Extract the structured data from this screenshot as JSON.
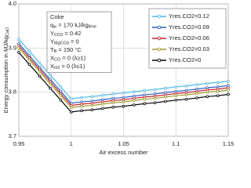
{
  "chart_data": {
    "type": "line",
    "x_label": "Air excess number",
    "y_label": [
      "Energy consumption in MJ/kg",
      "CaO"
    ],
    "annotation": [
      [
        "Coke"
      ],
      [
        "q",
        "w",
        " = 170 kJ/kg",
        "lime"
      ],
      [
        "Y",
        "CO2",
        " = 0.42"
      ],
      [
        "Y",
        "MgCO3",
        " = 0"
      ],
      [
        "T",
        "B",
        " = 150 °C"
      ],
      [
        "X",
        "CO",
        " = 0 (λ≥1)"
      ],
      [
        "X",
        "O2",
        " = 0 (λ≤1)"
      ]
    ],
    "x": [
      0.95,
      0.96,
      0.97,
      0.98,
      0.99,
      1.0,
      1.01,
      1.02,
      1.03,
      1.04,
      1.05,
      1.06,
      1.07,
      1.08,
      1.09,
      1.1,
      1.11,
      1.12,
      1.13,
      1.14,
      1.15
    ],
    "series": [
      {
        "name": "Yres.CO2=0.12",
        "color": "#4fb7e3",
        "values": [
          3.92,
          3.893,
          3.866,
          3.839,
          3.812,
          3.785,
          3.788,
          3.79,
          3.793,
          3.796,
          3.798,
          3.801,
          3.804,
          3.806,
          3.809,
          3.812,
          3.814,
          3.817,
          3.82,
          3.822,
          3.825
        ]
      },
      {
        "name": "Yres.CO2=0.09",
        "color": "#2a5fbf",
        "values": [
          3.91,
          3.883,
          3.856,
          3.829,
          3.802,
          3.775,
          3.778,
          3.78,
          3.783,
          3.786,
          3.788,
          3.791,
          3.794,
          3.796,
          3.799,
          3.802,
          3.804,
          3.807,
          3.81,
          3.812,
          3.815
        ]
      },
      {
        "name": "Yres.CO2=0.06",
        "color": "#c0262d",
        "values": [
          3.905,
          3.878,
          3.851,
          3.824,
          3.797,
          3.77,
          3.773,
          3.775,
          3.778,
          3.781,
          3.783,
          3.786,
          3.789,
          3.791,
          3.794,
          3.797,
          3.799,
          3.802,
          3.805,
          3.807,
          3.81
        ]
      },
      {
        "name": "Yres.CO2=0.03",
        "color": "#9a9a2a",
        "values": [
          3.9,
          3.873,
          3.846,
          3.819,
          3.792,
          3.765,
          3.768,
          3.77,
          3.773,
          3.776,
          3.778,
          3.781,
          3.784,
          3.786,
          3.789,
          3.792,
          3.794,
          3.797,
          3.8,
          3.802,
          3.805
        ]
      },
      {
        "name": "Yres.CO2=0",
        "color": "#000000",
        "values": [
          3.89,
          3.863,
          3.836,
          3.809,
          3.782,
          3.755,
          3.758,
          3.76,
          3.763,
          3.766,
          3.768,
          3.771,
          3.774,
          3.776,
          3.779,
          3.782,
          3.784,
          3.787,
          3.79,
          3.792,
          3.795
        ]
      }
    ],
    "xlim": [
      0.95,
      1.15
    ],
    "xticks": [
      0.95,
      1,
      1.05,
      1.1,
      1.15
    ],
    "ylim": [
      3.7,
      4
    ],
    "yticks": [
      3.7,
      3.8,
      3.9,
      {
        "value": 4,
        "label": "4.0"
      }
    ],
    "grid": true,
    "legend": "upper right"
  }
}
